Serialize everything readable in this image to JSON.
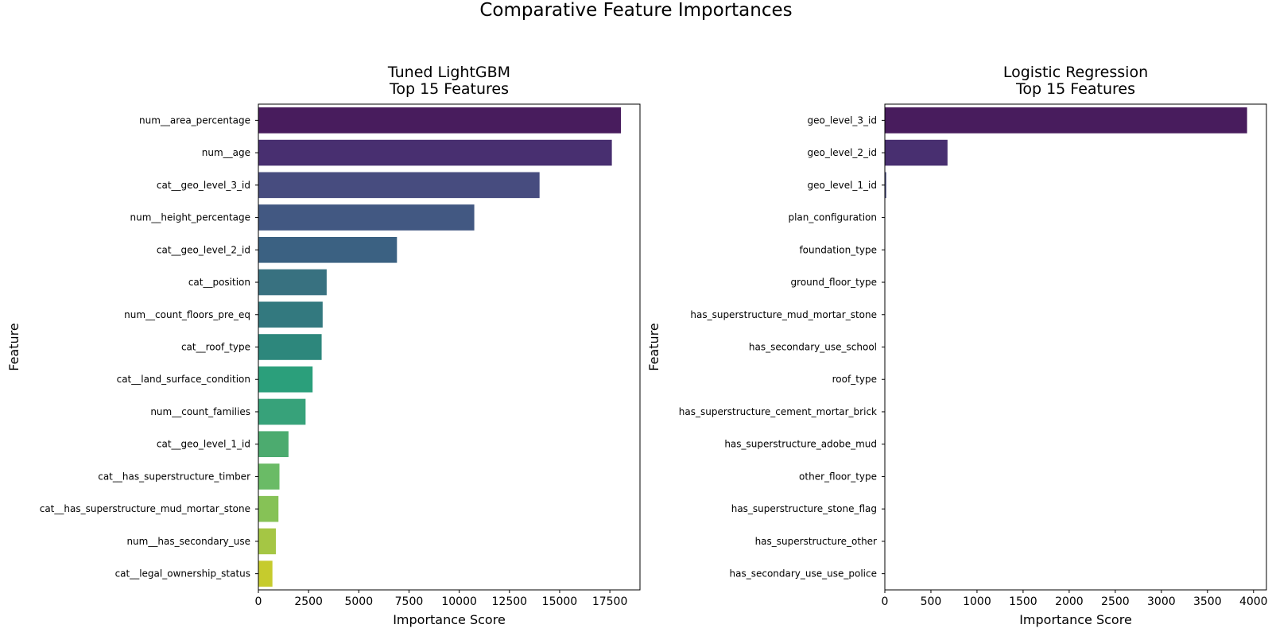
{
  "figure": {
    "title": "Comparative Feature Importances"
  },
  "chart_data": [
    {
      "type": "bar",
      "orientation": "horizontal",
      "title": "Tuned LightGBM\nTop 15 Features",
      "xlabel": "Importance Score",
      "ylabel": "Feature",
      "xlim": [
        0,
        19000
      ],
      "xticks": [
        0,
        2500,
        5000,
        7500,
        10000,
        12500,
        15000,
        17500
      ],
      "categories": [
        "num__area_percentage",
        "num__age",
        "cat__geo_level_3_id",
        "num__height_percentage",
        "cat__geo_level_2_id",
        "cat__position",
        "num__count_floors_pre_eq",
        "cat__roof_type",
        "cat__land_surface_condition",
        "num__count_families",
        "cat__geo_level_1_id",
        "cat__has_superstructure_timber",
        "cat__has_superstructure_mud_mortar_stone",
        "num__has_secondary_use",
        "cat__legal_ownership_status"
      ],
      "values": [
        18050,
        17600,
        14000,
        10750,
        6900,
        3400,
        3200,
        3150,
        2700,
        2350,
        1500,
        1050,
        1000,
        870,
        700
      ],
      "colors": [
        "#481c5d",
        "#482f70",
        "#474c7f",
        "#425882",
        "#3b6182",
        "#387180",
        "#33797f",
        "#2d877c",
        "#2b9f7b",
        "#37a27a",
        "#4cab6f",
        "#6abb66",
        "#86c256",
        "#a5c644",
        "#c6cb2d"
      ],
      "grid": false
    },
    {
      "type": "bar",
      "orientation": "horizontal",
      "title": "Logistic Regression\nTop 15 Features",
      "xlabel": "Importance Score",
      "ylabel": "Feature",
      "xlim": [
        0,
        4140
      ],
      "xticks": [
        0,
        500,
        1000,
        1500,
        2000,
        2500,
        3000,
        3500,
        4000
      ],
      "categories": [
        "geo_level_3_id",
        "geo_level_2_id",
        "geo_level_1_id",
        "plan_configuration",
        "foundation_type",
        "ground_floor_type",
        "has_superstructure_mud_mortar_stone",
        "has_secondary_use_school",
        "roof_type",
        "has_superstructure_cement_mortar_brick",
        "has_superstructure_adobe_mud",
        "other_floor_type",
        "has_superstructure_stone_flag",
        "has_superstructure_other",
        "has_secondary_use_use_police"
      ],
      "values": [
        3930,
        680,
        15,
        0.5,
        0.4,
        0.3,
        0.3,
        0.2,
        0.2,
        0.2,
        0.1,
        0.1,
        0.1,
        0.1,
        0.1
      ],
      "colors": [
        "#481c5d",
        "#482f70",
        "#474c7f",
        "#425882",
        "#3b6182",
        "#387180",
        "#33797f",
        "#2d877c",
        "#2b9f7b",
        "#37a27a",
        "#4cab6f",
        "#6abb66",
        "#86c256",
        "#a5c644",
        "#c6cb2d"
      ],
      "grid": false
    }
  ]
}
